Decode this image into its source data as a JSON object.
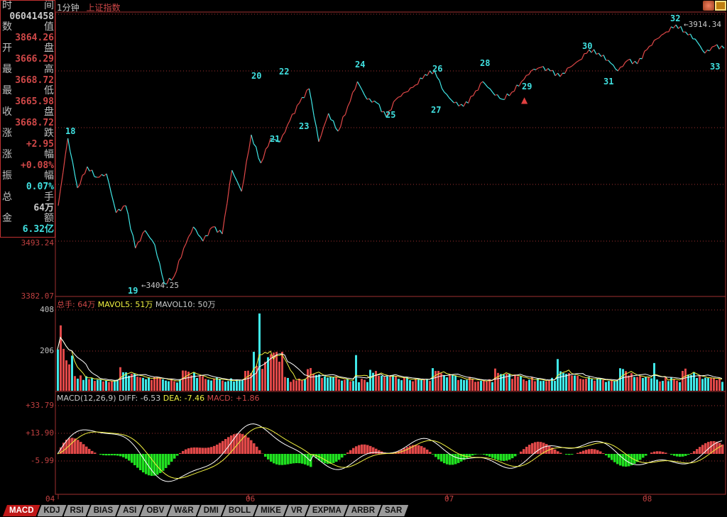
{
  "header": {
    "period": "1分钟",
    "index_name": "上证指数"
  },
  "info_panel": {
    "rows": [
      {
        "l": "时",
        "r": "间",
        "value": "06041458",
        "color": "white"
      },
      {
        "l": "数",
        "r": "值",
        "value": "3864.26",
        "color": "red"
      },
      {
        "l": "开",
        "r": "盘",
        "value": "3666.29",
        "color": "red"
      },
      {
        "l": "最",
        "r": "高",
        "value": "3668.72",
        "color": "red"
      },
      {
        "l": "最",
        "r": "低",
        "value": "3665.98",
        "color": "red"
      },
      {
        "l": "收",
        "r": "盘",
        "value": "3668.72",
        "color": "red"
      },
      {
        "l": "涨",
        "r": "跌",
        "value": "+2.95",
        "color": "red"
      },
      {
        "l": "涨",
        "r": "幅",
        "value": "+0.08%",
        "color": "red"
      },
      {
        "l": "振",
        "r": "幅",
        "value": "0.07%",
        "color": "cyan"
      },
      {
        "l": "总",
        "r": "手",
        "value": "64万",
        "color": "white"
      },
      {
        "l": "金",
        "r": "额",
        "value": "6.32亿",
        "color": "cyan"
      }
    ]
  },
  "price_axis": {
    "labels": [
      "3493.24",
      "3382.07"
    ]
  },
  "annotations": {
    "high": "3914.34",
    "low": "3404.25",
    "wave_labels": [
      "18",
      "19",
      "20",
      "21",
      "22",
      "23",
      "24",
      "25",
      "26",
      "27",
      "28",
      "29",
      "30",
      "31",
      "32",
      "33"
    ]
  },
  "volume_panel": {
    "total_label": "总手: 64万",
    "mavol5_label": "MAVOL5: 51万",
    "mavol10_label": "MAVOL10: 50万",
    "axis": [
      "408",
      "206"
    ]
  },
  "macd_panel": {
    "title": "MACD(12,26,9)",
    "diff_label": "DIFF: -6.53",
    "dea_label": "DEA: -7.46",
    "macd_label": "MACD: +1.86",
    "axis": [
      "+33.79",
      "+13.90",
      "-5.99"
    ]
  },
  "x_axis": {
    "labels": [
      "04",
      "06",
      "07",
      "08"
    ]
  },
  "tabs": [
    "MACD",
    "KDJ",
    "RSI",
    "BIAS",
    "ASI",
    "OBV",
    "W&R",
    "DMI",
    "BOLL",
    "MIKE",
    "VR",
    "EXPMA",
    "ARBR",
    "SAR"
  ],
  "active_tab": "MACD",
  "colors": {
    "up": "#e04848",
    "down": "#40e8e8",
    "grid": "#a03030",
    "mavol5": "#f0f040",
    "mavol10": "#ffffff"
  },
  "chart_data": {
    "type": "line",
    "title": "上证指数 1分钟",
    "x_tick_labels": [
      "04",
      "06",
      "07",
      "08"
    ],
    "price_values": [
      3558.0,
      3690.7,
      3592.9,
      3634.8,
      3613.9,
      3620.9,
      3544.0,
      3558.0,
      3474.1,
      3509.1,
      3481.1,
      3404.25,
      3418.2,
      3474.1,
      3516.1,
      3488.1,
      3516.1,
      3502.1,
      3627.9,
      3586.0,
      3697.7,
      3641.8,
      3690.7,
      3683.8,
      3725.7,
      3760.6,
      3788.6,
      3683.8,
      3739.7,
      3704.7,
      3753.6,
      3802.5,
      3767.6,
      3760.6,
      3732.7,
      3767.6,
      3781.6,
      3795.6,
      3816.5,
      3823.5,
      3781.6,
      3760.6,
      3753.6,
      3774.6,
      3802.5,
      3781.6,
      3767.6,
      3781.6,
      3802.5,
      3823.5,
      3830.5,
      3823.5,
      3812.3,
      3830.5,
      3844.5,
      3865.4,
      3858.4,
      3844.5,
      3823.5,
      3844.5,
      3837.5,
      3865.4,
      3886.4,
      3900.4,
      3914.34,
      3900.4,
      3886.4,
      3858.4,
      3872.4,
      3868.2
    ],
    "price_range": [
      3382.07,
      3950
    ],
    "volume_ylim": [
      0,
      408
    ],
    "macd_ylim": [
      -20,
      33.79
    ]
  }
}
